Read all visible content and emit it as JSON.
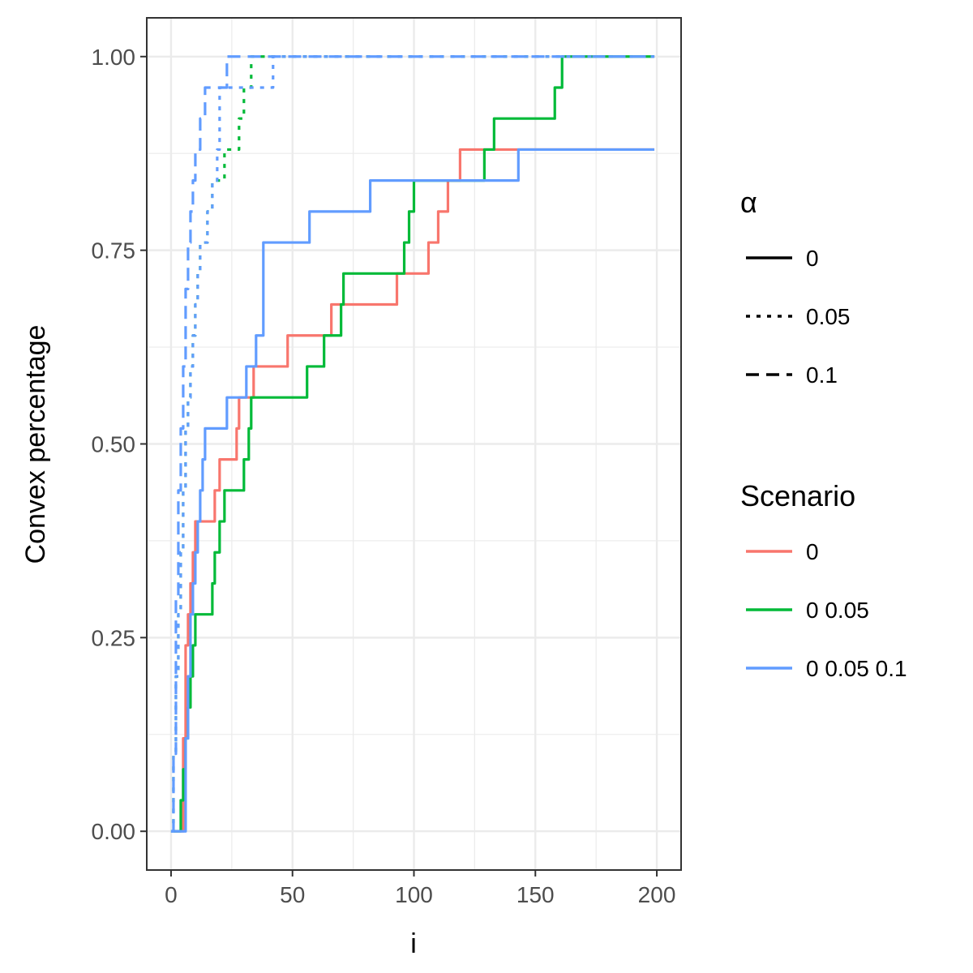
{
  "chart_data": {
    "type": "line",
    "title": "",
    "xlabel": "i",
    "ylabel": "Convex percentage",
    "xlim": [
      -10,
      210
    ],
    "ylim": [
      -0.05,
      1.05
    ],
    "x_ticks": [
      0,
      50,
      100,
      150,
      200
    ],
    "x_tick_labels": [
      "0",
      "50",
      "100",
      "150",
      "200"
    ],
    "y_ticks": [
      0,
      0.25,
      0.5,
      0.75,
      1
    ],
    "y_tick_labels": [
      "0.00",
      "0.25",
      "0.50",
      "0.75",
      "1.00"
    ],
    "x_minor_ticks": [
      25,
      75,
      125,
      175
    ],
    "y_minor_ticks": [
      0.125,
      0.375,
      0.625,
      0.875
    ],
    "grid": true,
    "step": true,
    "legend_position": "right",
    "legends": [
      {
        "title": "α",
        "kind": "linetype",
        "items": [
          {
            "label": "0",
            "dash": "solid"
          },
          {
            "label": "0.05",
            "dash": "dotted"
          },
          {
            "label": "0.1",
            "dash": "dashed"
          }
        ]
      },
      {
        "title": "Scenario",
        "kind": "color",
        "items": [
          {
            "label": "0",
            "color": "#F8766D"
          },
          {
            "label": "0 0.05",
            "color": "#00BA38"
          },
          {
            "label": "0 0.05 0.1",
            "color": "#619CFF"
          }
        ]
      }
    ],
    "series": [
      {
        "scenario": "0",
        "alpha": "0",
        "color": "#F8766D",
        "dash": "solid",
        "x": [
          0,
          4,
          5,
          6,
          7,
          8,
          9,
          10,
          11,
          17,
          18,
          19,
          20,
          26,
          27,
          28,
          29,
          33,
          34,
          35,
          47,
          48,
          56,
          57,
          65,
          66,
          67,
          68,
          92,
          93,
          105,
          106,
          109,
          110,
          113,
          114,
          118,
          119,
          199
        ],
        "y": [
          0,
          0,
          0.12,
          0.24,
          0.28,
          0.32,
          0.36,
          0.4,
          0.4,
          0.4,
          0.44,
          0.44,
          0.48,
          0.48,
          0.52,
          0.56,
          0.56,
          0.56,
          0.6,
          0.6,
          0.6,
          0.64,
          0.64,
          0.64,
          0.64,
          0.68,
          0.68,
          0.68,
          0.68,
          0.72,
          0.72,
          0.76,
          0.76,
          0.8,
          0.8,
          0.84,
          0.84,
          0.88,
          0.88
        ]
      },
      {
        "scenario": "0 0.05",
        "alpha": "0",
        "color": "#00BA38",
        "dash": "solid",
        "x": [
          0,
          3,
          4,
          5,
          6,
          7,
          8,
          9,
          10,
          11,
          16,
          17,
          18,
          19,
          20,
          21,
          22,
          23,
          29,
          30,
          31,
          32,
          33,
          34,
          55,
          56,
          62,
          63,
          69,
          70,
          71,
          72,
          95,
          96,
          97,
          98,
          99,
          100,
          128,
          129,
          130,
          131,
          132,
          133,
          157,
          158,
          160,
          161,
          162,
          199
        ],
        "y": [
          0,
          0,
          0.04,
          0.08,
          0.12,
          0.16,
          0.2,
          0.24,
          0.28,
          0.28,
          0.28,
          0.32,
          0.36,
          0.36,
          0.4,
          0.4,
          0.44,
          0.44,
          0.44,
          0.48,
          0.48,
          0.52,
          0.56,
          0.56,
          0.56,
          0.6,
          0.6,
          0.64,
          0.64,
          0.68,
          0.72,
          0.72,
          0.72,
          0.76,
          0.76,
          0.8,
          0.8,
          0.84,
          0.84,
          0.88,
          0.88,
          0.88,
          0.88,
          0.92,
          0.92,
          0.96,
          0.96,
          1.0,
          1.0,
          1.0
        ]
      },
      {
        "scenario": "0 0.05 0.1",
        "alpha": "0",
        "color": "#619CFF",
        "dash": "solid",
        "x": [
          0,
          5,
          6,
          7,
          8,
          9,
          10,
          11,
          12,
          13,
          14,
          22,
          23,
          30,
          31,
          34,
          35,
          36,
          38,
          56,
          57,
          81,
          82,
          142,
          143,
          199
        ],
        "y": [
          0,
          0,
          0.12,
          0.2,
          0.28,
          0.32,
          0.36,
          0.4,
          0.44,
          0.48,
          0.52,
          0.52,
          0.56,
          0.56,
          0.6,
          0.6,
          0.64,
          0.64,
          0.76,
          0.76,
          0.8,
          0.8,
          0.84,
          0.84,
          0.88,
          0.88
        ]
      },
      {
        "scenario": "0 0.05",
        "alpha": "0.05",
        "color": "#00BA38",
        "dash": "dotted",
        "x": [
          0,
          1,
          2,
          3,
          4,
          5,
          6,
          7,
          8,
          9,
          10,
          11,
          12,
          13,
          14,
          15,
          16,
          17,
          18,
          19,
          20,
          21,
          22,
          23,
          24,
          25,
          26,
          27,
          28,
          29,
          30,
          31,
          32,
          33,
          34,
          199
        ],
        "y": [
          0,
          0.1,
          0.2,
          0.28,
          0.36,
          0.44,
          0.52,
          0.56,
          0.6,
          0.64,
          0.68,
          0.72,
          0.76,
          0.76,
          0.76,
          0.8,
          0.8,
          0.84,
          0.84,
          0.84,
          0.84,
          0.84,
          0.88,
          0.88,
          0.88,
          0.88,
          0.88,
          0.88,
          0.92,
          0.92,
          0.96,
          0.96,
          0.96,
          1.0,
          1.0,
          1.0
        ]
      },
      {
        "scenario": "0 0.05 0.1",
        "alpha": "0.05",
        "color": "#619CFF",
        "dash": "dotted",
        "x": [
          0,
          1,
          2,
          3,
          4,
          5,
          6,
          7,
          8,
          9,
          10,
          11,
          12,
          13,
          14,
          15,
          16,
          17,
          18,
          19,
          20,
          36,
          37,
          41,
          42,
          199
        ],
        "y": [
          0,
          0.1,
          0.2,
          0.28,
          0.36,
          0.44,
          0.52,
          0.56,
          0.6,
          0.64,
          0.68,
          0.72,
          0.76,
          0.76,
          0.76,
          0.8,
          0.8,
          0.84,
          0.84,
          0.88,
          0.96,
          0.96,
          0.96,
          0.96,
          1.0,
          1.0
        ]
      },
      {
        "scenario": "0 0.05 0.1",
        "alpha": "0.1",
        "color": "#619CFF",
        "dash": "dashed",
        "x": [
          0,
          1,
          2,
          3,
          4,
          5,
          6,
          7,
          8,
          9,
          10,
          11,
          12,
          13,
          14,
          15,
          20,
          21,
          22,
          23,
          24,
          199
        ],
        "y": [
          0,
          0.1,
          0.3,
          0.44,
          0.52,
          0.6,
          0.7,
          0.76,
          0.8,
          0.84,
          0.88,
          0.88,
          0.92,
          0.92,
          0.96,
          0.96,
          0.96,
          0.96,
          0.96,
          1.0,
          1.0,
          1.0
        ]
      }
    ]
  }
}
